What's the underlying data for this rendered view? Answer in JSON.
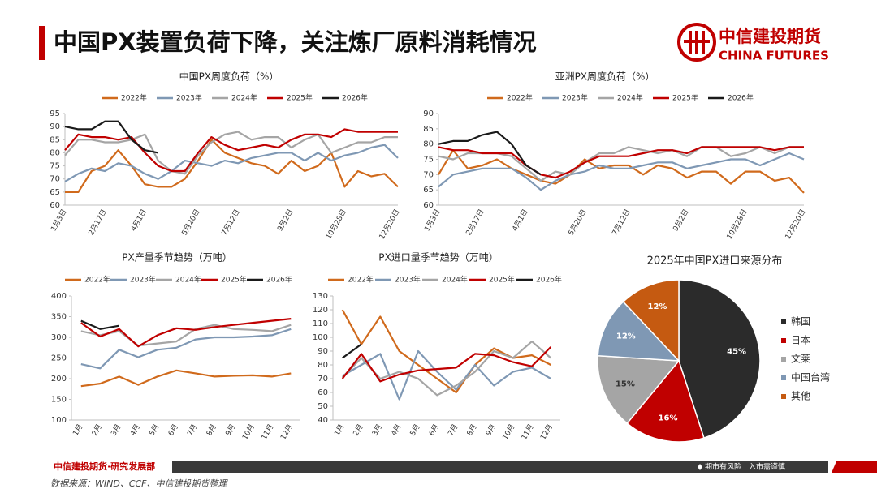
{
  "header": {
    "title": "中国PX装置负荷下降，关注炼厂原料消耗情况"
  },
  "logo": {
    "name": "中信建投期货",
    "english": "CHINA FUTURES"
  },
  "footer": {
    "department": "中信建投期货·研究发展部",
    "risk": "期市有风险　入市需谨慎",
    "source": "数据来源：WIND、CCF、中信建投期货整理"
  },
  "chart_data": [
    {
      "type": "line",
      "title": "中国PX周度负荷（%）",
      "categories": [
        "1月3日",
        null,
        null,
        "2月17日",
        null,
        null,
        "4月1日",
        null,
        null,
        null,
        "5月20日",
        null,
        null,
        "7月12日",
        null,
        null,
        null,
        "9月2日",
        null,
        null,
        null,
        "10月28日",
        null,
        null,
        null,
        "12月20日"
      ],
      "ylim": [
        60,
        95
      ],
      "yticks": [
        60,
        65,
        70,
        75,
        80,
        85,
        90,
        95
      ],
      "series": [
        {
          "name": "2022年",
          "color": "#d06a1c",
          "values": [
            65,
            65,
            73,
            75,
            81,
            75,
            68,
            67,
            67,
            70,
            77,
            85,
            80,
            78,
            76,
            75,
            72,
            77,
            73,
            75,
            80,
            67,
            73,
            71,
            72,
            67
          ]
        },
        {
          "name": "2023年",
          "color": "#7f98b4",
          "values": [
            69,
            72,
            74,
            73,
            76,
            75,
            72,
            70,
            73,
            77,
            76,
            75,
            77,
            76,
            78,
            79,
            80,
            80,
            77,
            80,
            77,
            79,
            80,
            82,
            83,
            78
          ]
        },
        {
          "name": "2024年",
          "color": "#a5a5a5",
          "values": [
            79,
            85,
            85,
            84,
            84,
            85,
            87,
            77,
            73,
            72,
            79,
            84,
            87,
            88,
            85,
            86,
            86,
            82,
            85,
            87,
            80,
            82,
            84,
            84,
            86,
            86
          ]
        },
        {
          "name": "2025年",
          "color": "#c00000",
          "values": [
            81,
            87,
            86,
            86,
            85,
            86,
            80,
            75,
            73,
            73,
            80,
            86,
            83,
            81,
            82,
            83,
            82,
            85,
            87,
            87,
            86,
            89,
            88,
            88,
            88,
            88
          ]
        },
        {
          "name": "2026年",
          "color": "#1a1a1a",
          "values": [
            90,
            89,
            89,
            92,
            92,
            85,
            81,
            80,
            null,
            null,
            null,
            null,
            null,
            null,
            null,
            null,
            null,
            null,
            null,
            null,
            null,
            null,
            null,
            null,
            null,
            null
          ]
        }
      ]
    },
    {
      "type": "line",
      "title": "亚洲PX周度负荷（%）",
      "categories": [
        "1月3日",
        null,
        null,
        "2月17日",
        null,
        null,
        "4月1日",
        null,
        null,
        null,
        "5月20日",
        null,
        null,
        "7月12日",
        null,
        null,
        null,
        "9月2日",
        null,
        null,
        null,
        "10月28日",
        null,
        null,
        null,
        "12月20日"
      ],
      "ylim": [
        60,
        90
      ],
      "yticks": [
        60,
        65,
        70,
        75,
        80,
        85,
        90
      ],
      "series": [
        {
          "name": "2022年",
          "color": "#d06a1c",
          "values": [
            70,
            78,
            72,
            73,
            75,
            72,
            70,
            68,
            67,
            70,
            75,
            72,
            73,
            73,
            70,
            73,
            72,
            69,
            71,
            71,
            67,
            71,
            71,
            68,
            69,
            64
          ]
        },
        {
          "name": "2023年",
          "color": "#7f98b4",
          "values": [
            66,
            70,
            71,
            72,
            72,
            72,
            69,
            65,
            68,
            70,
            71,
            73,
            72,
            72,
            73,
            74,
            74,
            72,
            73,
            74,
            75,
            75,
            73,
            75,
            77,
            75
          ]
        },
        {
          "name": "2024年",
          "color": "#a5a5a5",
          "values": [
            76,
            75,
            77,
            77,
            77,
            76,
            72,
            68,
            71,
            70,
            74,
            77,
            77,
            79,
            78,
            77,
            78,
            76,
            79,
            79,
            76,
            77,
            79,
            77,
            79,
            79
          ]
        },
        {
          "name": "2025年",
          "color": "#c00000",
          "values": [
            79,
            78,
            78,
            77,
            77,
            77,
            73,
            70,
            69,
            71,
            74,
            76,
            76,
            76,
            77,
            78,
            78,
            77,
            79,
            79,
            79,
            79,
            79,
            78,
            79,
            79
          ]
        },
        {
          "name": "2026年",
          "color": "#1a1a1a",
          "values": [
            80,
            81,
            81,
            83,
            84,
            80,
            73,
            70,
            null,
            null,
            null,
            null,
            null,
            null,
            null,
            null,
            null,
            null,
            null,
            null,
            null,
            null,
            null,
            null,
            null,
            null
          ]
        }
      ]
    },
    {
      "type": "line",
      "title": "PX产量季节趋势（万吨）",
      "categories": [
        "1月",
        "2月",
        "3月",
        "4月",
        "5月",
        "6月",
        "7月",
        "8月",
        "9月",
        "10月",
        "11月",
        "12月"
      ],
      "ylim": [
        100,
        400
      ],
      "yticks": [
        100,
        150,
        200,
        250,
        300,
        350,
        400
      ],
      "series": [
        {
          "name": "2022年",
          "color": "#d06a1c",
          "values": [
            182,
            188,
            205,
            185,
            205,
            220,
            213,
            205,
            207,
            208,
            205,
            213
          ]
        },
        {
          "name": "2023年",
          "color": "#7f98b4",
          "values": [
            235,
            225,
            270,
            252,
            270,
            275,
            295,
            300,
            300,
            302,
            305,
            320
          ]
        },
        {
          "name": "2024年",
          "color": "#a5a5a5",
          "values": [
            315,
            305,
            315,
            280,
            285,
            290,
            320,
            330,
            320,
            318,
            315,
            330
          ]
        },
        {
          "name": "2025年",
          "color": "#c00000",
          "values": [
            335,
            302,
            320,
            278,
            305,
            322,
            318,
            325,
            330,
            335,
            340,
            345
          ]
        },
        {
          "name": "2026年",
          "color": "#1a1a1a",
          "values": [
            340,
            320,
            328,
            null,
            null,
            null,
            null,
            null,
            null,
            null,
            null,
            null
          ]
        }
      ]
    },
    {
      "type": "line",
      "title": "PX进口量季节趋势（万吨）",
      "categories": [
        "1月",
        "2月",
        "3月",
        "4月",
        "5月",
        "6月",
        "7月",
        "8月",
        "9月",
        "10月",
        "11月",
        "12月"
      ],
      "ylim": [
        40,
        130
      ],
      "yticks": [
        40,
        50,
        60,
        70,
        80,
        90,
        100,
        110,
        120,
        130
      ],
      "series": [
        {
          "name": "2022年",
          "color": "#d06a1c",
          "values": [
            120,
            95,
            115,
            90,
            80,
            70,
            60,
            80,
            92,
            85,
            87,
            80
          ]
        },
        {
          "name": "2023年",
          "color": "#7f98b4",
          "values": [
            72,
            80,
            88,
            55,
            90,
            75,
            62,
            80,
            65,
            75,
            78,
            70
          ]
        },
        {
          "name": "2024年",
          "color": "#a5a5a5",
          "values": [
            71,
            85,
            70,
            75,
            70,
            58,
            65,
            75,
            90,
            85,
            97,
            85
          ]
        },
        {
          "name": "2025年",
          "color": "#c00000",
          "values": [
            70,
            88,
            68,
            73,
            76,
            77,
            78,
            88,
            87,
            82,
            79,
            93
          ]
        },
        {
          "name": "2026年",
          "color": "#1a1a1a",
          "values": [
            85,
            95,
            null,
            null,
            null,
            null,
            null,
            null,
            null,
            null,
            null,
            null
          ]
        }
      ]
    },
    {
      "type": "pie",
      "title": "2025年中国PX进口来源分布",
      "categories": [
        "韩国",
        "日本",
        "文莱",
        "中国台湾",
        "其他"
      ],
      "values": [
        45,
        16,
        15,
        12,
        12
      ],
      "value_labels": [
        "45%",
        "16%",
        "15%",
        "12%",
        "12%"
      ],
      "colors": [
        "#2b2b2b",
        "#c00000",
        "#a5a5a5",
        "#7f98b4",
        "#c55a11"
      ]
    }
  ]
}
